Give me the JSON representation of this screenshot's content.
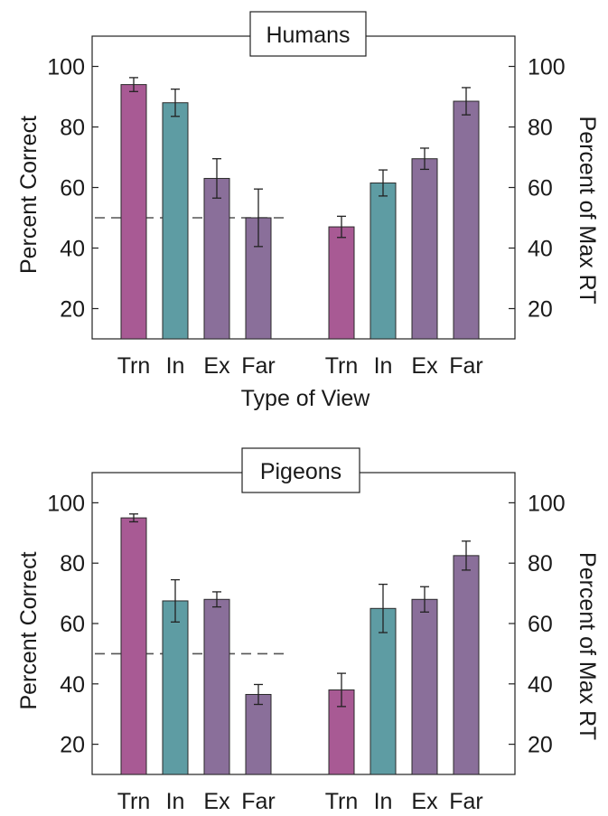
{
  "colors": {
    "trn": "#a85a94",
    "in": "#5e9ca3",
    "ex": "#8a6f9a",
    "far": "#8a6f9a",
    "bar_stroke": "#2a2a2a",
    "reference_line": "#555555"
  },
  "chart_data": [
    {
      "type": "bar",
      "title": "Humans",
      "ylabel": "Percent Correct",
      "ylabel_right": "Percent of Max RT",
      "xlabel": "Type of View",
      "ylim": [
        10,
        110
      ],
      "yticks": [
        "20",
        "40",
        "60",
        "80",
        "100"
      ],
      "yticks_right": [
        "20",
        "40",
        "60",
        "80",
        "100"
      ],
      "reference_line": 50,
      "groups": [
        {
          "categories": [
            "Trn",
            "In",
            "Ex",
            "Far"
          ],
          "values": [
            94,
            88,
            63,
            50
          ],
          "errors": [
            2.3,
            4.5,
            6.5,
            9.5
          ]
        },
        {
          "categories": [
            "Trn",
            "In",
            "Ex",
            "Far"
          ],
          "values": [
            47,
            61.5,
            69.5,
            88.5
          ],
          "errors": [
            3.5,
            4.3,
            3.5,
            4.5
          ]
        }
      ]
    },
    {
      "type": "bar",
      "title": "Pigeons",
      "ylabel": "Percent Correct",
      "ylabel_right": "Percent of Max RT",
      "xlabel": "",
      "ylim": [
        10,
        110
      ],
      "yticks": [
        "20",
        "40",
        "60",
        "80",
        "100"
      ],
      "yticks_right": [
        "20",
        "40",
        "60",
        "80",
        "100"
      ],
      "reference_line": 50,
      "groups": [
        {
          "categories": [
            "Trn",
            "In",
            "Ex",
            "Far"
          ],
          "values": [
            95,
            67.5,
            68,
            36.5
          ],
          "errors": [
            1.3,
            7,
            2.5,
            3.3
          ]
        },
        {
          "categories": [
            "Trn",
            "In",
            "Ex",
            "Far"
          ],
          "values": [
            38,
            65,
            68,
            82.5
          ],
          "errors": [
            5.5,
            8,
            4.2,
            4.8
          ]
        }
      ]
    }
  ]
}
